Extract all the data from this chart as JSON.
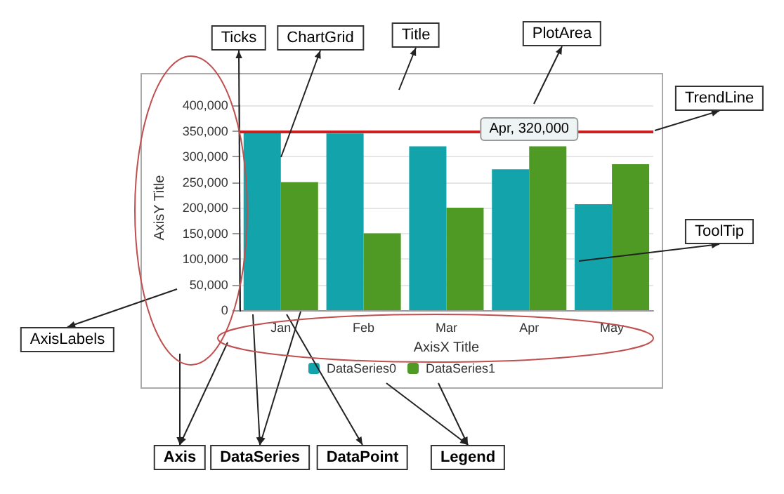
{
  "chart_data": {
    "type": "bar",
    "xlabel": "AxisX Title",
    "ylabel": "AxisY Title",
    "categories": [
      "Jan",
      "Feb",
      "Mar",
      "Apr",
      "May"
    ],
    "series": [
      {
        "name": "DataSeries0",
        "color": "#12a3ab",
        "values": [
          350000,
          345000,
          320000,
          275000,
          207000
        ]
      },
      {
        "name": "DataSeries1",
        "color": "#4f9a25",
        "values": [
          250000,
          150000,
          200000,
          320000,
          285000
        ]
      }
    ],
    "ylim": [
      0,
      400000
    ],
    "yticks": [
      0,
      {
        "value": 50000,
        "label": "50,000"
      },
      {
        "value": 100000,
        "label": "100,000"
      },
      {
        "value": 150000,
        "label": "150,000"
      },
      {
        "value": 200000,
        "label": "200,000"
      },
      {
        "value": 250000,
        "label": "250,000"
      },
      {
        "value": 300000,
        "label": "300,000"
      },
      {
        "value": 350000,
        "label": "350,000"
      },
      {
        "value": 400000,
        "label": "400,000"
      }
    ],
    "ref_lines": [
      {
        "axis": "y",
        "value": 350000,
        "color": "#cc2020"
      }
    ],
    "grid": "y",
    "legend": "bottom",
    "annotations": [
      {
        "text": "Apr, 320,000",
        "x": "Apr",
        "y": 320000
      },
      "Ticks",
      "ChartGrid",
      "Title",
      "PlotArea",
      "TrendLine",
      "ToolTip",
      "AxisLabels",
      "Axis",
      "DataSeries",
      "DataPoint",
      "Legend"
    ]
  }
}
